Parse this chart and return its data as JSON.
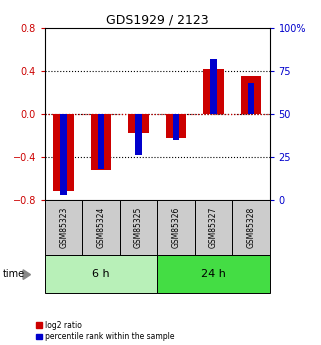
{
  "title": "GDS1929 / 2123",
  "samples": [
    "GSM85323",
    "GSM85324",
    "GSM85325",
    "GSM85326",
    "GSM85327",
    "GSM85328"
  ],
  "log2_ratio": [
    -0.72,
    -0.52,
    -0.18,
    -0.22,
    0.42,
    0.35
  ],
  "percentile_rank": [
    3,
    18,
    26,
    35,
    82,
    68
  ],
  "groups": [
    {
      "label": "6 h",
      "start": 0,
      "end": 2,
      "color": "#b8f0b8"
    },
    {
      "label": "24 h",
      "start": 3,
      "end": 5,
      "color": "#44dd44"
    }
  ],
  "ylim_left": [
    -0.8,
    0.8
  ],
  "ylim_right": [
    0,
    100
  ],
  "yticks_left": [
    -0.8,
    -0.4,
    0.0,
    0.4,
    0.8
  ],
  "yticks_right": [
    0,
    25,
    50,
    75,
    100
  ],
  "left_color": "#cc0000",
  "right_color": "#0000cc",
  "red_bar_width": 0.55,
  "blue_bar_width": 0.18,
  "sample_box_color": "#cccccc",
  "legend_red_label": "log2 ratio",
  "legend_blue_label": "percentile rank within the sample"
}
